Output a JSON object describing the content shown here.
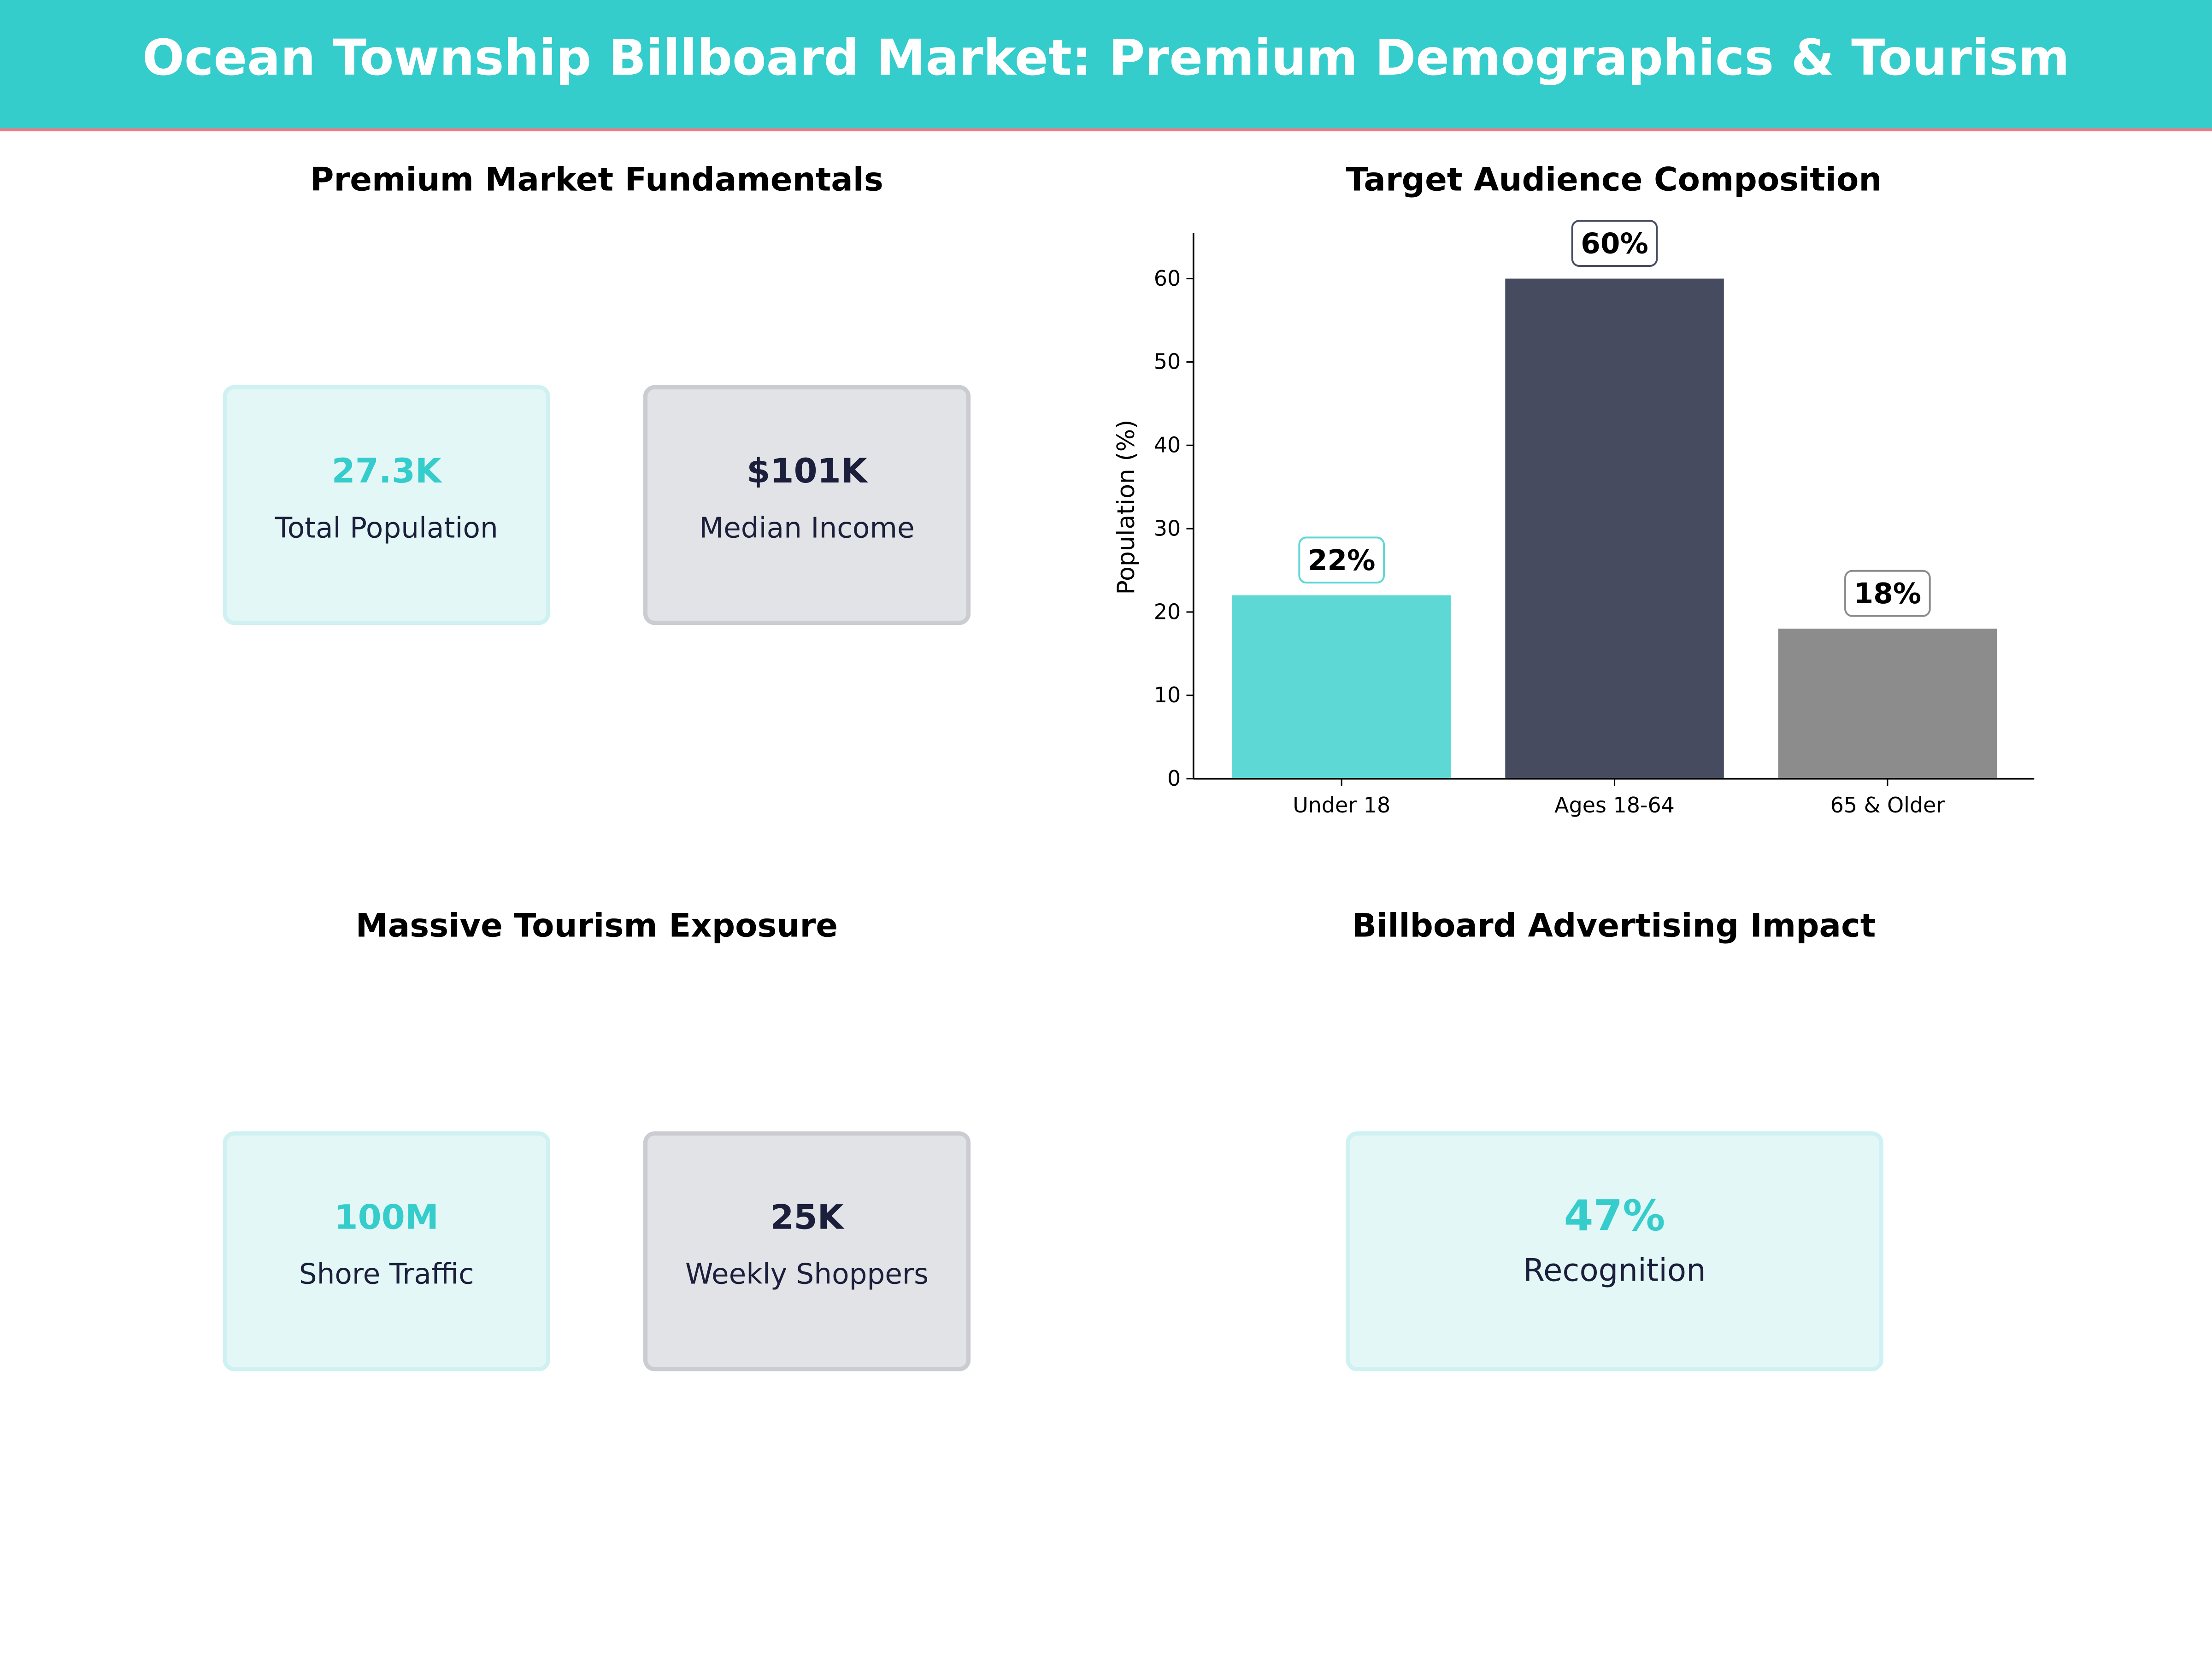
{
  "header": {
    "title": "Ocean Township Billboard Market: Premium Demographics & Tourism"
  },
  "colors": {
    "accent": "#35CCCC",
    "dark": "#1B1F3B",
    "rule": "#F07A85"
  },
  "panels": {
    "fundamentals": {
      "title": "Premium Market Fundamentals",
      "cards": [
        {
          "value": "27.3K",
          "label": "Total Population"
        },
        {
          "value": "$101K",
          "label": "Median Income"
        }
      ]
    },
    "tourism": {
      "title": "Massive Tourism Exposure",
      "cards": [
        {
          "value": "100M",
          "label": "Shore Traffic"
        },
        {
          "value": "25K",
          "label": "Weekly Shoppers"
        }
      ]
    },
    "impact": {
      "title": "Billboard Advertising Impact",
      "cards": [
        {
          "value": "47%",
          "label": "Recognition"
        }
      ]
    }
  },
  "chart_data": {
    "type": "bar",
    "title": "Target Audience Composition",
    "categories": [
      "Under 18",
      "Ages 18-64",
      "65 & Older"
    ],
    "values": [
      22,
      60,
      18
    ],
    "data_labels": [
      "22%",
      "60%",
      "18%"
    ],
    "colors": [
      "#5DD8D5",
      "#464B60",
      "#8C8C8C"
    ],
    "xlabel": "",
    "ylabel": "Population (%)",
    "ylim": [
      0,
      65.5
    ],
    "yticks": [
      0,
      10,
      20,
      30,
      40,
      50,
      60
    ],
    "grid": false
  }
}
